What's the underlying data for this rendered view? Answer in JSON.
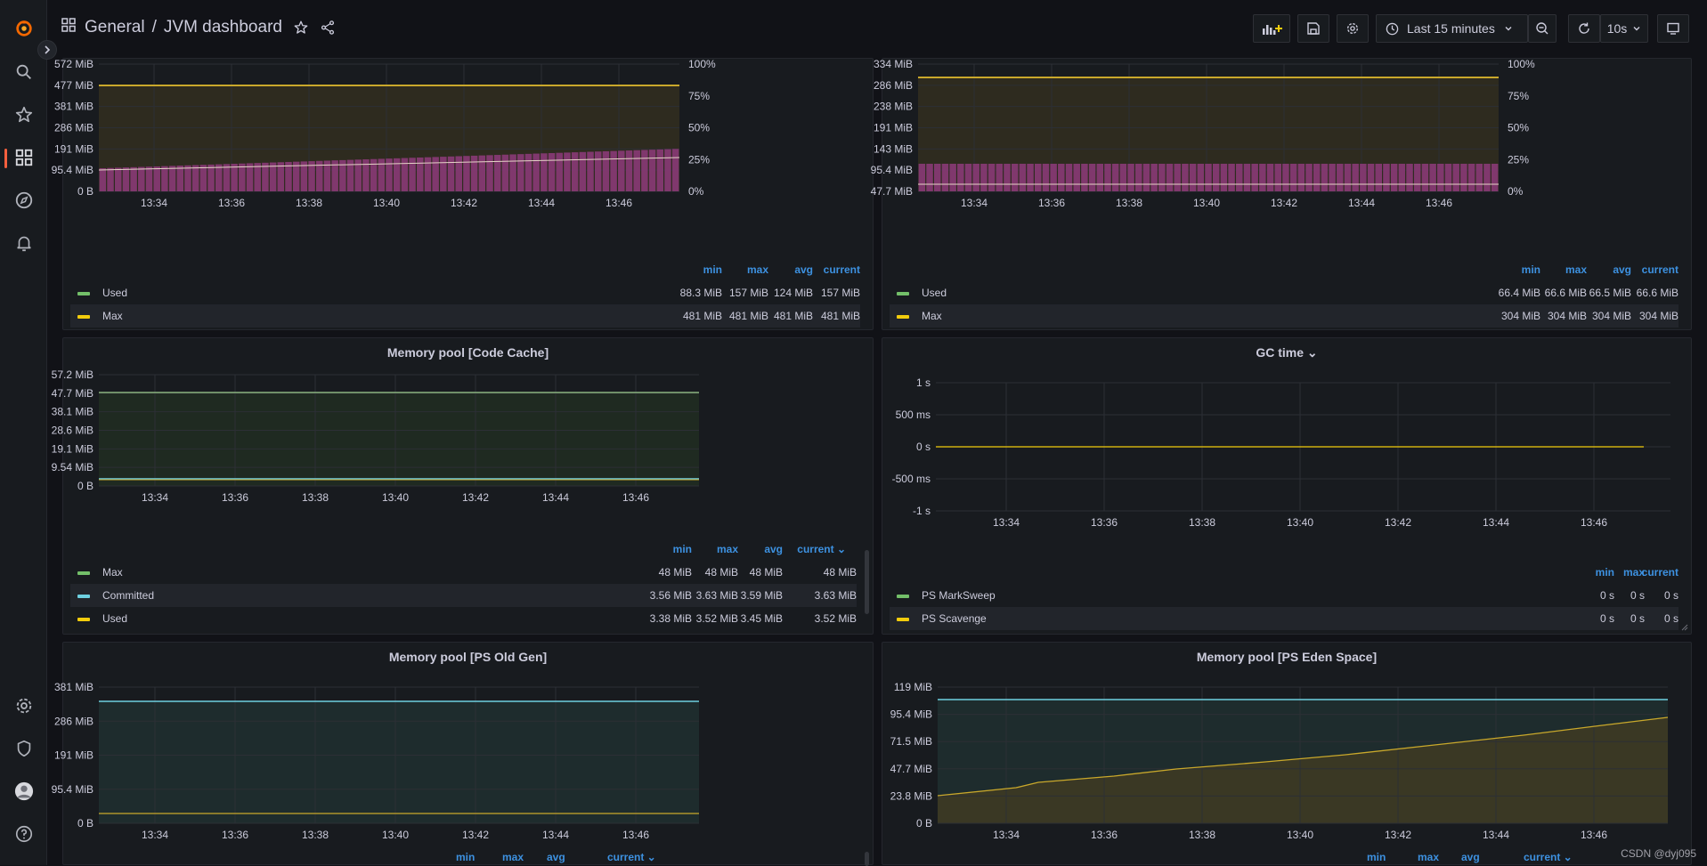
{
  "nav": {
    "section": "General",
    "separator": "/",
    "title": "JVM dashboard",
    "time_range": "Last 15 minutes",
    "refresh": "10s"
  },
  "sidebar": {
    "items": [
      "grafana-logo",
      "search",
      "starred",
      "dashboards",
      "explore",
      "alerting",
      "configuration",
      "server-admin",
      "profile",
      "help"
    ]
  },
  "x_ticks": [
    "13:34",
    "13:36",
    "13:38",
    "13:40",
    "13:42",
    "13:44",
    "13:46"
  ],
  "legend_headers": {
    "min": "min",
    "max": "max",
    "avg": "avg",
    "current": "current"
  },
  "panels": {
    "heap_top": {
      "title": "",
      "y_left": [
        "572 MiB",
        "477 MiB",
        "381 MiB",
        "286 MiB",
        "191 MiB",
        "95.4 MiB",
        "0 B"
      ],
      "y_right": [
        "100%",
        "75%",
        "50%",
        "25%",
        "0%"
      ],
      "legend": [
        {
          "name": "Used",
          "color": "#73bf69",
          "min": "88.3 MiB",
          "max": "157 MiB",
          "avg": "124 MiB",
          "current": "157 MiB"
        },
        {
          "name": "Max",
          "color": "#f2cc0c",
          "min": "481 MiB",
          "max": "481 MiB",
          "avg": "481 MiB",
          "current": "481 MiB"
        }
      ]
    },
    "nonheap_top": {
      "title": "",
      "y_left": [
        "334 MiB",
        "286 MiB",
        "238 MiB",
        "191 MiB",
        "143 MiB",
        "95.4 MiB",
        "47.7 MiB"
      ],
      "y_right": [
        "100%",
        "75%",
        "50%",
        "25%",
        "0%"
      ],
      "legend": [
        {
          "name": "Used",
          "color": "#73bf69",
          "min": "66.4 MiB",
          "max": "66.6 MiB",
          "avg": "66.5 MiB",
          "current": "66.6 MiB"
        },
        {
          "name": "Max",
          "color": "#f2cc0c",
          "min": "304 MiB",
          "max": "304 MiB",
          "avg": "304 MiB",
          "current": "304 MiB"
        }
      ]
    },
    "code_cache": {
      "title": "Memory pool [Code Cache]",
      "y_left": [
        "57.2 MiB",
        "47.7 MiB",
        "38.1 MiB",
        "28.6 MiB",
        "19.1 MiB",
        "9.54 MiB",
        "0 B"
      ],
      "current_header": "current ⌄",
      "legend": [
        {
          "name": "Max",
          "color": "#73bf69",
          "min": "48 MiB",
          "max": "48 MiB",
          "avg": "48 MiB",
          "current": "48 MiB"
        },
        {
          "name": "Committed",
          "color": "#6ed0e0",
          "min": "3.56 MiB",
          "max": "3.63 MiB",
          "avg": "3.59 MiB",
          "current": "3.63 MiB"
        },
        {
          "name": "Used",
          "color": "#f2cc0c",
          "min": "3.38 MiB",
          "max": "3.52 MiB",
          "avg": "3.45 MiB",
          "current": "3.52 MiB"
        }
      ]
    },
    "gc_time": {
      "title": "GC time ⌄",
      "y_left": [
        "1 s",
        "500 ms",
        "0 s",
        "-500 ms",
        "-1 s"
      ],
      "legend": [
        {
          "name": "PS MarkSweep",
          "color": "#73bf69",
          "min": "0 s",
          "max": "0 s",
          "current": "0 s"
        },
        {
          "name": "PS Scavenge",
          "color": "#f2cc0c",
          "min": "0 s",
          "max": "0 s",
          "current": "0 s"
        }
      ]
    },
    "old_gen": {
      "title": "Memory pool [PS Old Gen]",
      "y_left": [
        "381 MiB",
        "286 MiB",
        "191 MiB",
        "95.4 MiB",
        "0 B"
      ],
      "current_header": "current ⌄"
    },
    "eden": {
      "title": "Memory pool [PS Eden Space]",
      "y_left": [
        "119 MiB",
        "95.4 MiB",
        "71.5 MiB",
        "47.7 MiB",
        "23.8 MiB",
        "0 B"
      ],
      "current_header": "current ⌄"
    }
  },
  "watermark": "CSDN @dyj095"
}
